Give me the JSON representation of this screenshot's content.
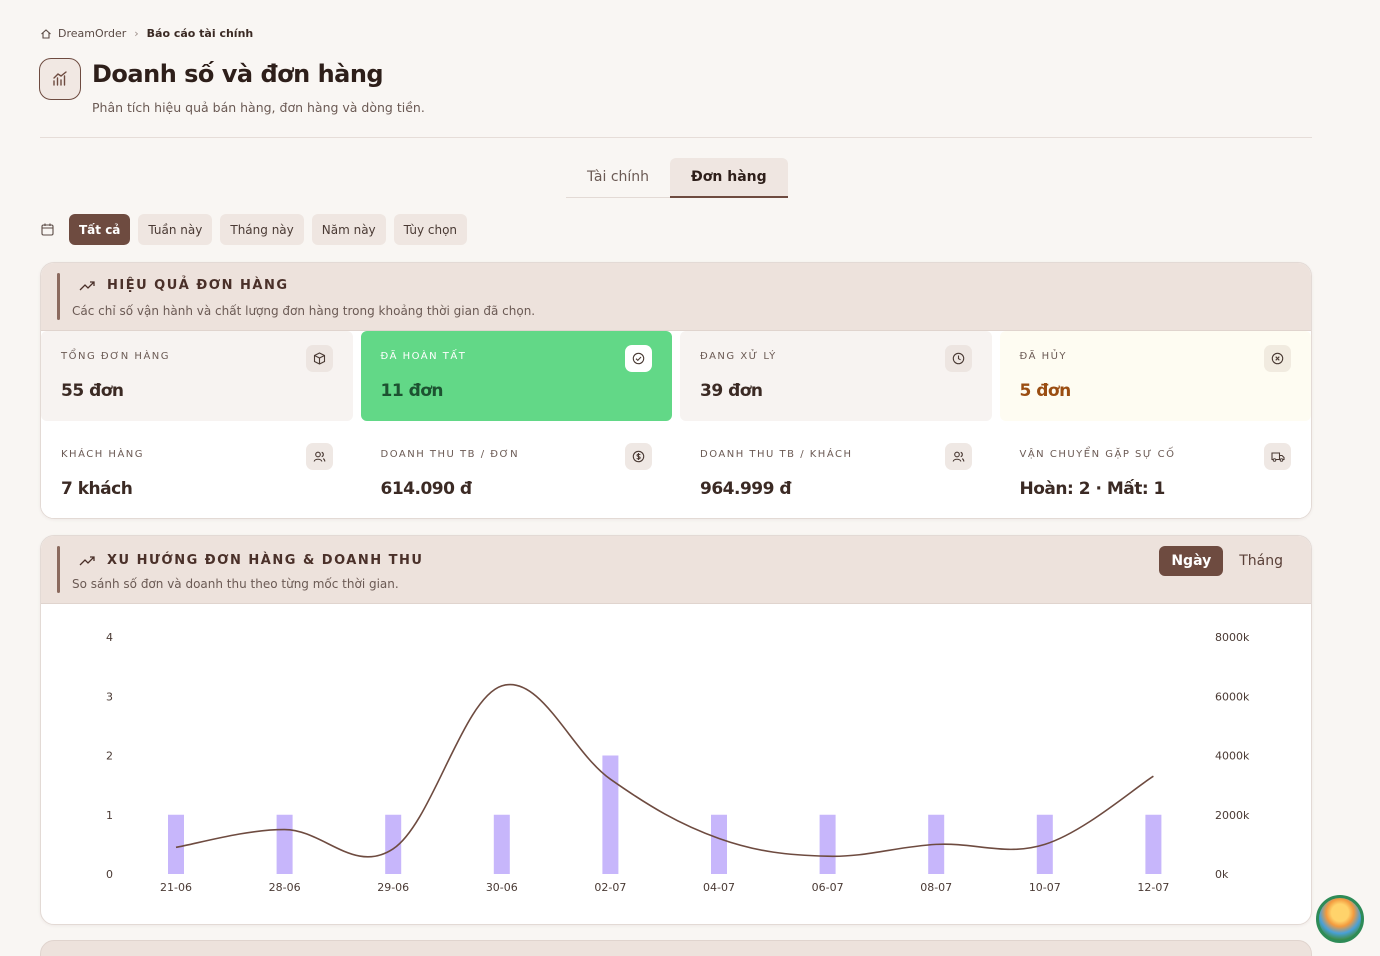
{
  "breadcrumb": {
    "home": "DreamOrder",
    "current": "Báo cáo tài chính"
  },
  "header": {
    "title": "Doanh số và đơn hàng",
    "subtitle": "Phân tích hiệu quả bán hàng, đơn hàng và dòng tiền."
  },
  "tabs": [
    {
      "label": "Tài chính",
      "active": false
    },
    {
      "label": "Đơn hàng",
      "active": true
    }
  ],
  "filters": [
    {
      "label": "Tất cả",
      "active": true
    },
    {
      "label": "Tuần này"
    },
    {
      "label": "Tháng này"
    },
    {
      "label": "Năm này"
    },
    {
      "label": "Tùy chọn"
    }
  ],
  "performance": {
    "title": "HIỆU QUẢ ĐƠN HÀNG",
    "desc": "Các chỉ số vận hành và chất lượng đơn hàng trong khoảng thời gian đã chọn.",
    "metrics": [
      {
        "label": "TỔNG ĐƠN HÀNG",
        "value": "55 đơn",
        "icon": "package-icon"
      },
      {
        "label": "ĐÃ HOÀN TẤT",
        "value": "11 đơn",
        "icon": "check-circle-icon"
      },
      {
        "label": "ĐANG XỬ LÝ",
        "value": "39 đơn",
        "icon": "clock-icon"
      },
      {
        "label": "ĐÃ HỦY",
        "value": "5 đơn",
        "icon": "x-circle-icon"
      },
      {
        "label": "KHÁCH HÀNG",
        "value": "7 khách",
        "icon": "users-icon"
      },
      {
        "label": "DOANH THU TB / ĐƠN",
        "value": "614.090 đ",
        "icon": "dollar-circle-icon"
      },
      {
        "label": "DOANH THU TB / KHÁCH",
        "value": "964.999 đ",
        "icon": "users-icon"
      },
      {
        "label": "VẬN CHUYỂN GẶP SỰ CỐ",
        "value": "Hoàn: 2 · Mất: 1",
        "icon": "truck-icon"
      }
    ]
  },
  "trend": {
    "title": "XU HƯỚNG ĐƠN HÀNG & DOANH THU",
    "desc": "So sánh số đơn và doanh thu theo từng mốc thời gian.",
    "toggle": [
      {
        "label": "Ngày",
        "active": true
      },
      {
        "label": "Tháng",
        "active": false
      }
    ]
  },
  "colors": {
    "brand": "#6e4b40",
    "bar": "#c7b6fb",
    "line": "#6e4b40",
    "green": "#62d887"
  },
  "chart_data": {
    "type": "bar",
    "categories": [
      "21-06",
      "28-06",
      "29-06",
      "30-06",
      "02-07",
      "04-07",
      "06-07",
      "08-07",
      "10-07",
      "12-07"
    ],
    "series": [
      {
        "axis": "left",
        "kind": "bar",
        "values": [
          1,
          1,
          1,
          1,
          2,
          1,
          1,
          1,
          1,
          1
        ]
      },
      {
        "axis": "right",
        "kind": "line",
        "values": [
          900,
          1500,
          850,
          6350,
          3200,
          1200,
          600,
          1000,
          1000,
          3300
        ]
      }
    ],
    "ylim": [
      0,
      4
    ],
    "y_ticks": [
      "0",
      "1",
      "2",
      "3",
      "4"
    ],
    "y2lim": [
      0,
      8000
    ],
    "y2_ticks": [
      "0k",
      "2000k",
      "4000k",
      "6000k",
      "8000k"
    ]
  }
}
